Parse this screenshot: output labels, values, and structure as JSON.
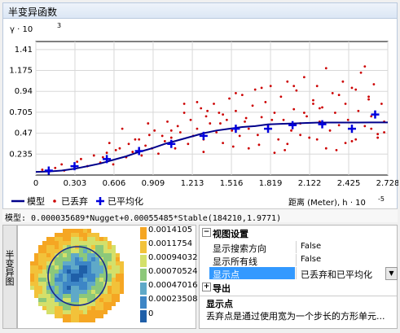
{
  "panel": {
    "title": "半变异函数"
  },
  "chart_data": {
    "type": "scatter",
    "y_label": "γ · 10",
    "y_exp": "3",
    "x_label": "距离 (Meter), h · 10",
    "x_exp": "-5",
    "ylim": [
      0,
      1.5
    ],
    "xlim": [
      0,
      2.728
    ],
    "y_ticks": [
      0.235,
      0.47,
      0.705,
      0.94,
      1.175,
      1.41
    ],
    "y_tick_labels": [
      "0.235",
      "0.47",
      "0.705",
      "0.94",
      "1.175",
      "1.41"
    ],
    "x_ticks": [
      0,
      0.303,
      0.606,
      0.909,
      1.213,
      1.516,
      1.819,
      2.122,
      2.425,
      2.728
    ],
    "x_tick_labels": [
      "0",
      "0.303",
      "0.606",
      "0.909",
      "1.213",
      "1.516",
      "1.819",
      "2.122",
      "2.425",
      "2.728"
    ],
    "grid": true,
    "legend_position": "bottom-left",
    "series": [
      {
        "name": "模型",
        "kind": "line",
        "color": "#00008b",
        "x": [
          0,
          0.1,
          0.2,
          0.3,
          0.4,
          0.5,
          0.6,
          0.7,
          0.8,
          0.9,
          1.0,
          1.1,
          1.2,
          1.3,
          1.4,
          1.5,
          1.6,
          1.7,
          1.8,
          1.9,
          2.0,
          2.1,
          2.2,
          2.3,
          2.4,
          2.5,
          2.6,
          2.7,
          2.728
        ],
        "y": [
          0.036,
          0.04,
          0.05,
          0.07,
          0.1,
          0.13,
          0.17,
          0.21,
          0.26,
          0.3,
          0.35,
          0.39,
          0.43,
          0.47,
          0.5,
          0.52,
          0.54,
          0.55,
          0.57,
          0.575,
          0.58,
          0.585,
          0.59,
          0.59,
          0.59,
          0.59,
          0.591,
          0.591,
          0.591
        ]
      },
      {
        "name": "已丢弃",
        "kind": "scatter",
        "color": "#cc0000",
        "x": [
          0.05,
          0.1,
          0.15,
          0.2,
          0.22,
          0.3,
          0.32,
          0.35,
          0.4,
          0.45,
          0.5,
          0.52,
          0.55,
          0.6,
          0.62,
          0.65,
          0.7,
          0.72,
          0.75,
          0.8,
          0.82,
          0.85,
          0.88,
          0.9,
          0.92,
          0.95,
          1.0,
          1.02,
          1.05,
          1.08,
          1.1,
          1.12,
          1.15,
          1.18,
          1.2,
          1.22,
          1.25,
          1.28,
          1.3,
          1.32,
          1.35,
          1.38,
          1.4,
          1.42,
          1.45,
          1.48,
          1.5,
          1.52,
          1.55,
          1.58,
          1.6,
          1.62,
          1.65,
          1.68,
          1.7,
          1.72,
          1.75,
          1.78,
          1.8,
          1.82,
          1.85,
          1.88,
          1.9,
          1.92,
          1.95,
          1.98,
          2.0,
          2.02,
          2.05,
          2.08,
          2.1,
          2.12,
          2.15,
          2.18,
          2.2,
          2.22,
          2.25,
          2.28,
          2.3,
          2.32,
          2.35,
          2.38,
          2.4,
          2.42,
          2.45,
          2.48,
          2.5,
          2.52,
          2.55,
          2.58,
          2.6,
          2.62,
          2.65,
          2.68,
          2.7,
          1.95,
          2.05,
          2.25,
          2.45,
          2.6,
          2.15,
          2.35,
          1.75,
          1.55,
          1.25,
          2.55,
          2.65,
          2.4,
          2.2,
          2.0,
          1.85,
          1.65,
          1.45,
          1.3,
          1.15,
          1.05,
          0.98,
          0.87,
          0.77,
          0.67,
          0.57,
          2.7,
          2.58,
          2.48,
          2.33,
          2.18,
          2.08,
          1.93,
          1.83,
          1.73,
          1.63,
          1.53,
          1.43,
          1.33
        ],
        "y": [
          0.06,
          0.03,
          0.08,
          0.12,
          0.05,
          0.09,
          0.15,
          0.18,
          0.1,
          0.22,
          0.14,
          0.2,
          0.25,
          0.12,
          0.28,
          0.3,
          0.2,
          0.35,
          0.26,
          0.4,
          0.22,
          0.33,
          0.45,
          0.3,
          0.5,
          0.24,
          0.38,
          0.6,
          0.42,
          0.3,
          0.55,
          0.48,
          0.7,
          0.35,
          0.62,
          0.44,
          0.52,
          0.75,
          0.4,
          0.66,
          0.58,
          0.8,
          0.48,
          0.7,
          0.36,
          0.62,
          0.86,
          0.5,
          0.72,
          0.44,
          0.9,
          0.6,
          0.52,
          0.78,
          0.96,
          0.45,
          0.65,
          0.82,
          0.55,
          1.0,
          0.7,
          0.4,
          0.88,
          0.62,
          1.05,
          0.5,
          0.74,
          0.95,
          0.58,
          1.1,
          0.66,
          0.42,
          0.84,
          1.0,
          0.6,
          0.76,
          1.2,
          0.5,
          0.92,
          0.7,
          0.56,
          1.05,
          0.8,
          0.62,
          0.98,
          0.4,
          0.72,
          1.15,
          0.55,
          0.88,
          0.66,
          1.02,
          0.46,
          0.8,
          0.6,
          0.35,
          0.45,
          0.3,
          0.38,
          0.52,
          0.8,
          0.9,
          0.98,
          0.92,
          0.82,
          1.22,
          0.42,
          0.36,
          0.75,
          1.0,
          0.25,
          0.3,
          0.68,
          0.26,
          0.8,
          0.5,
          0.44,
          0.58,
          0.4,
          0.52,
          0.36,
          0.48,
          0.85,
          0.96,
          0.28,
          0.4,
          0.7,
          0.28,
          0.62,
          0.34,
          0.64,
          0.32,
          0.58,
          0.72
        ]
      },
      {
        "name": "已平均化",
        "kind": "cross",
        "color": "#0000dd",
        "x": [
          0.1,
          0.3,
          0.55,
          0.8,
          1.05,
          1.3,
          1.55,
          1.8,
          1.99,
          2.22,
          2.45,
          2.63
        ],
        "y": [
          0.05,
          0.1,
          0.18,
          0.27,
          0.35,
          0.44,
          0.52,
          0.52,
          0.56,
          0.57,
          0.52,
          0.68
        ]
      }
    ]
  },
  "model": {
    "text": "模型: 0.000035689*Nugget+0.00055485*Stable(184210,1.9771)"
  },
  "side_tab": {
    "label": "半变异图"
  },
  "map_legend": {
    "values": [
      "0.0014105",
      "0.0011754",
      "0.00094032",
      "0.00070524",
      "0.00047016",
      "0.00023508",
      "0"
    ],
    "colors": [
      "#f5a623",
      "#f2c23a",
      "#d4e06a",
      "#8cc87a",
      "#5fa9c8",
      "#3d86c6",
      "#1f5fa8"
    ]
  },
  "props": {
    "view_settings": "视图设置",
    "rows": [
      {
        "label": "显示搜索方向",
        "value": "False"
      },
      {
        "label": "显示所有线",
        "value": "False"
      },
      {
        "label": "显示点",
        "value": "已丢弃和已平均化"
      }
    ],
    "export": "导出",
    "desc_title": "显示点",
    "desc_text": "丢弃点是通过使用宽为一个步长的方形单元..."
  }
}
